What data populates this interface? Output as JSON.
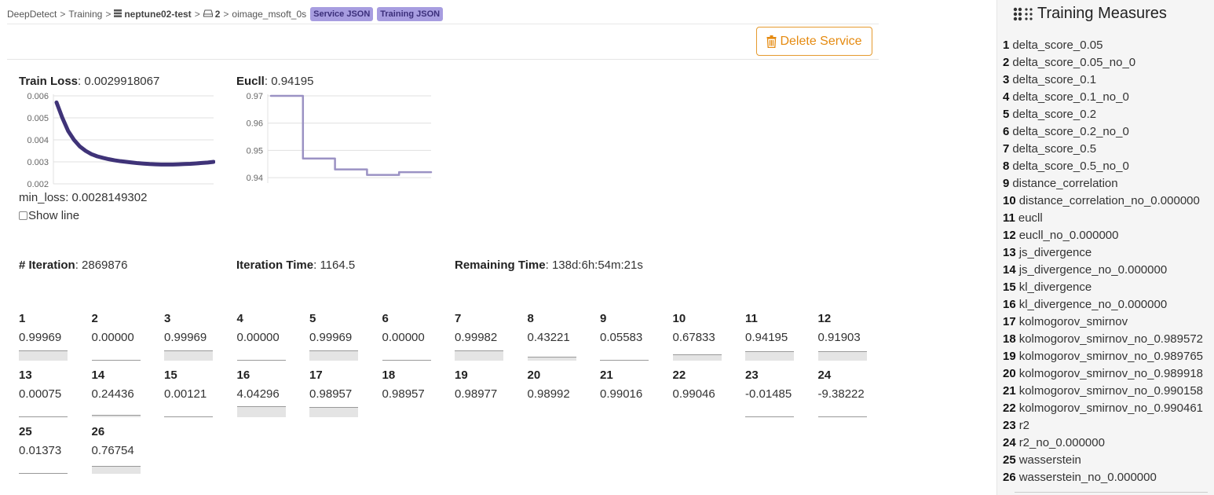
{
  "breadcrumb": {
    "root": "DeepDetect",
    "section": "Training",
    "service": "neptune02-test",
    "run": "2",
    "model": "oimage_msoft_0s",
    "service_json_label": "Service JSON",
    "training_json_label": "Training JSON"
  },
  "actions": {
    "delete_label": "Delete Service"
  },
  "train_loss": {
    "label": "Train Loss",
    "value": "0.0029918067",
    "min_label": "min_loss",
    "min_value": "0.0028149302",
    "show_line_label": "Show line"
  },
  "eucll": {
    "label": "Eucll",
    "value": "0.94195"
  },
  "iteration": {
    "label": "# Iteration",
    "value": "2869876"
  },
  "iteration_time": {
    "label": "Iteration Time",
    "value": "1164.5"
  },
  "remaining_time": {
    "label": "Remaining Time",
    "value": "138d:6h:54m:21s"
  },
  "chart_data": [
    {
      "type": "line",
      "title": "Train Loss",
      "ylim": [
        0.002,
        0.006
      ],
      "yticks": [
        "0.006",
        "0.005",
        "0.004",
        "0.003",
        "0.002"
      ],
      "grid": true,
      "color": "#3f3378",
      "series": [
        {
          "values": [
            0.0057,
            0.005,
            0.0044,
            0.004,
            0.0037,
            0.0035,
            0.00335,
            0.00325,
            0.00318,
            0.00312,
            0.00307,
            0.00303,
            0.003,
            0.00297,
            0.00294,
            0.00292,
            0.0029,
            0.00289,
            0.00288,
            0.00288,
            0.00288,
            0.00289,
            0.0029,
            0.00291,
            0.00293,
            0.00295,
            0.00297,
            0.003
          ]
        }
      ]
    },
    {
      "type": "line",
      "title": "Eucll",
      "ylim": [
        0.938,
        0.97
      ],
      "yticks": [
        "0.97",
        "0.96",
        "0.95",
        "0.94"
      ],
      "grid": true,
      "color": "#9b92c4",
      "step": true,
      "series": [
        {
          "values": [
            0.97,
            0.97,
            0.947,
            0.947,
            0.943,
            0.943,
            0.941,
            0.941,
            0.942,
            0.942,
            0.942
          ]
        }
      ]
    }
  ],
  "measures": [
    {
      "idx": "1",
      "value": "0.99969",
      "level": 0.9
    },
    {
      "idx": "2",
      "value": "0.00000",
      "level": 0.0
    },
    {
      "idx": "3",
      "value": "0.99969",
      "level": 0.9
    },
    {
      "idx": "4",
      "value": "0.00000",
      "level": 0.0
    },
    {
      "idx": "5",
      "value": "0.99969",
      "level": 0.9
    },
    {
      "idx": "6",
      "value": "0.00000",
      "level": 0.0
    },
    {
      "idx": "7",
      "value": "0.99982",
      "level": 0.9
    },
    {
      "idx": "8",
      "value": "0.43221",
      "level": 0.35
    },
    {
      "idx": "9",
      "value": "0.05583",
      "level": 0.05
    },
    {
      "idx": "10",
      "value": "0.67833",
      "level": 0.6
    },
    {
      "idx": "11",
      "value": "0.94195",
      "level": 0.85
    },
    {
      "idx": "12",
      "value": "0.91903",
      "level": 0.85
    },
    {
      "idx": "13",
      "value": "0.00075",
      "level": 0.0
    },
    {
      "idx": "14",
      "value": "0.24436",
      "level": 0.2
    },
    {
      "idx": "15",
      "value": "0.00121",
      "level": 0.0
    },
    {
      "idx": "16",
      "value": "4.04296",
      "level": 1.0
    },
    {
      "idx": "17",
      "value": "0.98957",
      "level": 0.9
    },
    {
      "idx": "18",
      "value": "0.98957",
      "level": -1
    },
    {
      "idx": "19",
      "value": "0.98977",
      "level": -1
    },
    {
      "idx": "20",
      "value": "0.98992",
      "level": -1
    },
    {
      "idx": "21",
      "value": "0.99016",
      "level": -1
    },
    {
      "idx": "22",
      "value": "0.99046",
      "level": -1
    },
    {
      "idx": "23",
      "value": "-0.01485",
      "level": 0.0
    },
    {
      "idx": "24",
      "value": "-9.38222",
      "level": 0.0
    },
    {
      "idx": "25",
      "value": "0.01373",
      "level": 0.0
    },
    {
      "idx": "26",
      "value": "0.76754",
      "level": 0.7
    }
  ],
  "sidebar": {
    "title": "Training Measures",
    "icon": "dots-grid-icon",
    "items": [
      {
        "idx": "1",
        "label": "delta_score_0.05"
      },
      {
        "idx": "2",
        "label": "delta_score_0.05_no_0"
      },
      {
        "idx": "3",
        "label": "delta_score_0.1"
      },
      {
        "idx": "4",
        "label": "delta_score_0.1_no_0"
      },
      {
        "idx": "5",
        "label": "delta_score_0.2"
      },
      {
        "idx": "6",
        "label": "delta_score_0.2_no_0"
      },
      {
        "idx": "7",
        "label": "delta_score_0.5"
      },
      {
        "idx": "8",
        "label": "delta_score_0.5_no_0"
      },
      {
        "idx": "9",
        "label": "distance_correlation"
      },
      {
        "idx": "10",
        "label": "distance_correlation_no_0.000000"
      },
      {
        "idx": "11",
        "label": "eucll"
      },
      {
        "idx": "12",
        "label": "eucll_no_0.000000"
      },
      {
        "idx": "13",
        "label": "js_divergence"
      },
      {
        "idx": "14",
        "label": "js_divergence_no_0.000000"
      },
      {
        "idx": "15",
        "label": "kl_divergence"
      },
      {
        "idx": "16",
        "label": "kl_divergence_no_0.000000"
      },
      {
        "idx": "17",
        "label": "kolmogorov_smirnov"
      },
      {
        "idx": "18",
        "label": "kolmogorov_smirnov_no_0.989572"
      },
      {
        "idx": "19",
        "label": "kolmogorov_smirnov_no_0.989765"
      },
      {
        "idx": "20",
        "label": "kolmogorov_smirnov_no_0.989918"
      },
      {
        "idx": "21",
        "label": "kolmogorov_smirnov_no_0.990158"
      },
      {
        "idx": "22",
        "label": "kolmogorov_smirnov_no_0.990461"
      },
      {
        "idx": "23",
        "label": "r2"
      },
      {
        "idx": "24",
        "label": "r2_no_0.000000"
      },
      {
        "idx": "25",
        "label": "wasserstein"
      },
      {
        "idx": "26",
        "label": "wasserstein_no_0.000000"
      }
    ]
  }
}
